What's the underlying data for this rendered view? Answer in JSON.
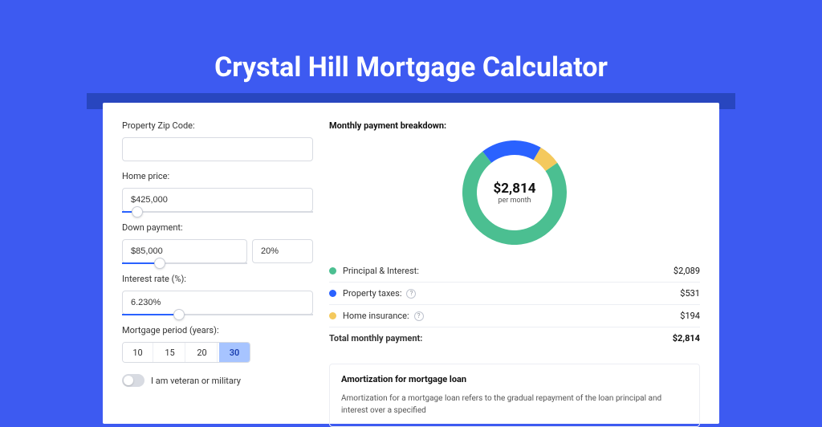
{
  "page": {
    "title": "Crystal Hill Mortgage Calculator",
    "background_color": "#3d5af1",
    "shadow_color": "#2846bf",
    "card_background": "#ffffff"
  },
  "form": {
    "zip": {
      "label": "Property Zip Code:",
      "value": ""
    },
    "home_price": {
      "label": "Home price:",
      "value": "$425,000",
      "slider_fill_pct": 8
    },
    "down_payment": {
      "label": "Down payment:",
      "amount": "$85,000",
      "percent": "20%",
      "slider_fill_pct": 20
    },
    "interest_rate": {
      "label": "Interest rate (%):",
      "value": "6.230%",
      "slider_fill_pct": 30
    },
    "period": {
      "label": "Mortgage period (years):",
      "options": [
        "10",
        "15",
        "20",
        "30"
      ],
      "selected": "30"
    },
    "veteran": {
      "label": "I am veteran or military",
      "on": false
    }
  },
  "breakdown": {
    "title": "Monthly payment breakdown:",
    "donut": {
      "amount": "$2,814",
      "sub": "per month",
      "slices": [
        {
          "key": "principal_interest",
          "value": 2089,
          "color": "#4bbf91"
        },
        {
          "key": "property_taxes",
          "value": 531,
          "color": "#2a62ff"
        },
        {
          "key": "home_insurance",
          "value": 194,
          "color": "#f4c95d"
        }
      ],
      "ring_width": 18,
      "size": 130,
      "start_angle_deg": -35
    },
    "items": [
      {
        "dot_color": "#4bbf91",
        "label": "Principal & Interest:",
        "info": false,
        "value": "$2,089"
      },
      {
        "dot_color": "#2a62ff",
        "label": "Property taxes:",
        "info": true,
        "value": "$531"
      },
      {
        "dot_color": "#f4c95d",
        "label": "Home insurance:",
        "info": true,
        "value": "$194"
      }
    ],
    "total": {
      "label": "Total monthly payment:",
      "value": "$2,814"
    }
  },
  "amortization": {
    "title": "Amortization for mortgage loan",
    "text": "Amortization for a mortgage loan refers to the gradual repayment of the loan principal and interest over a specified"
  },
  "colors": {
    "accent": "#2a62ff",
    "border": "#d8dbe2",
    "text": "#333333",
    "muted": "#8a8f9a"
  }
}
